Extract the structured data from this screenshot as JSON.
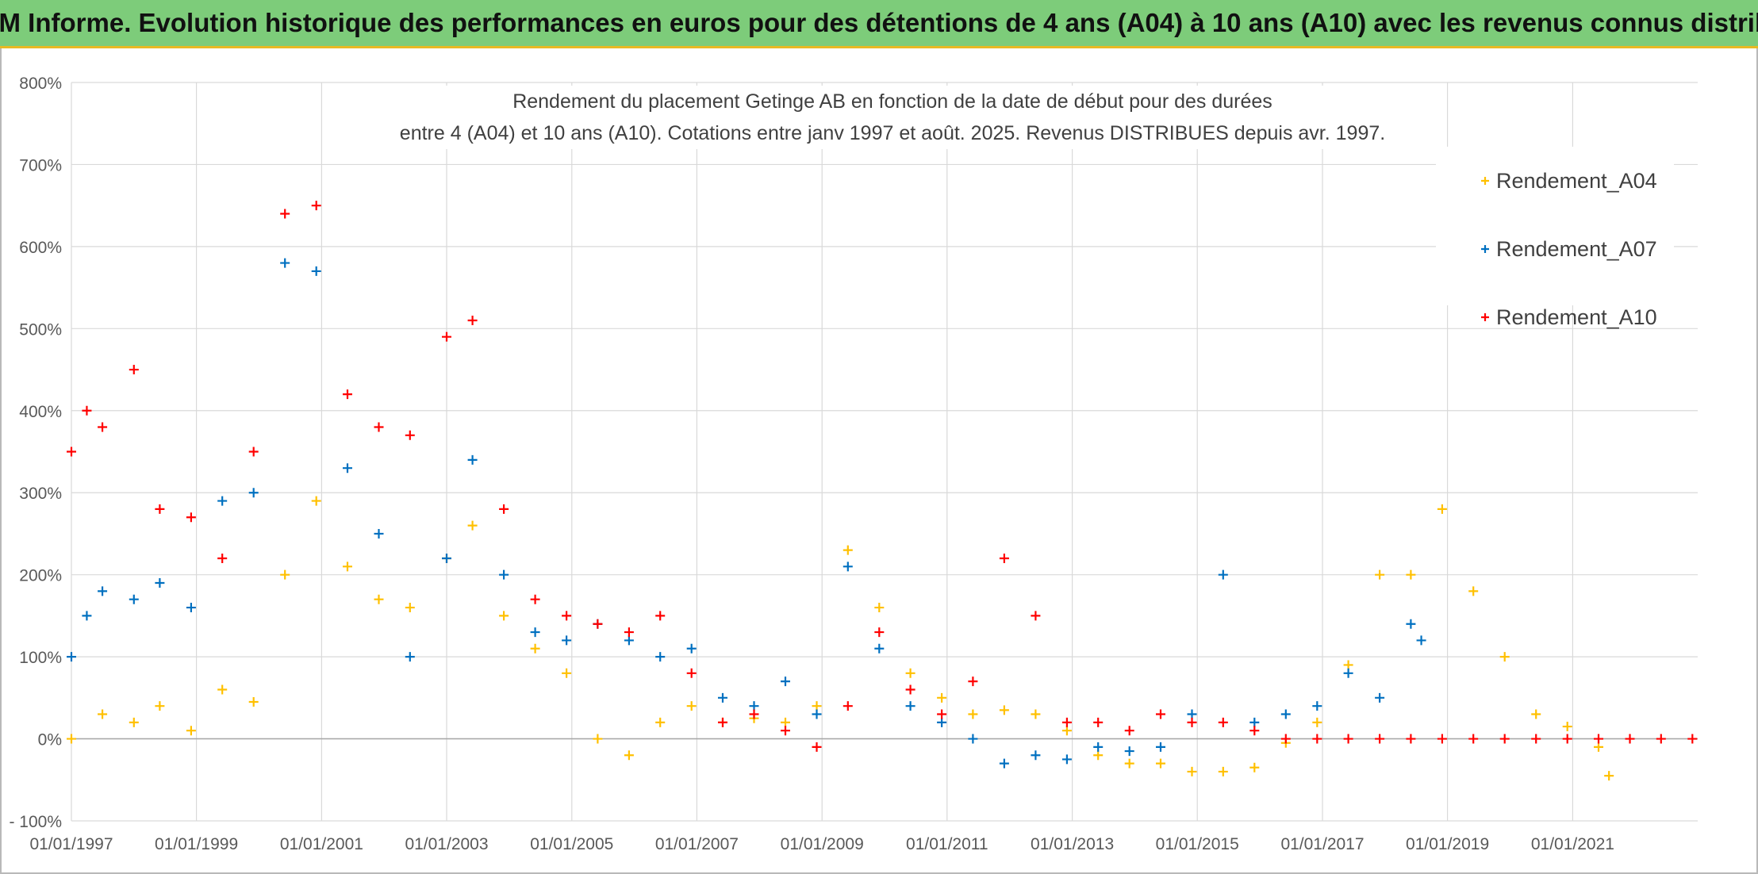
{
  "banner": {
    "title": "ADAM Informe. Evolution historique des performances en euros pour des détentions de 4 ans (A04) à 10 ans (A10) avec les revenus connus distribués"
  },
  "chart_data": {
    "type": "scatter",
    "title_line1": "Rendement du placement Getinge AB en fonction de la date de début pour des durées",
    "title_line2": "entre 4 (A04) et 10 ans (A10). Cotations entre janv 1997 et août. 2025. Revenus DISTRIBUES depuis avr. 1997.",
    "xlabel": "",
    "ylabel": "",
    "x_ticks": [
      "01/01/1997",
      "01/01/1999",
      "01/01/2001",
      "01/01/2003",
      "01/01/2005",
      "01/01/2007",
      "01/01/2009",
      "01/01/2011",
      "01/01/2013",
      "01/01/2015",
      "01/01/2017",
      "01/01/2019",
      "01/01/2021"
    ],
    "y_ticks": [
      "- 100%",
      "0%",
      "100%",
      "200%",
      "300%",
      "400%",
      "500%",
      "600%",
      "700%",
      "800%"
    ],
    "xlim": [
      "01/01/1997",
      "01/01/2023"
    ],
    "ylim": [
      -100,
      800
    ],
    "grid": true,
    "legend_position": "top-right",
    "marker": "+",
    "series": [
      {
        "name": "Rendement_A04",
        "color": "#ffc000",
        "x": [
          "01/01/1997",
          "01/07/1997",
          "01/01/1998",
          "01/06/1998",
          "01/12/1998",
          "01/06/1999",
          "01/12/1999",
          "01/06/2000",
          "01/12/2000",
          "01/06/2001",
          "01/12/2001",
          "01/06/2002",
          "01/01/2003",
          "01/06/2003",
          "01/12/2003",
          "01/06/2004",
          "01/12/2004",
          "01/06/2005",
          "01/12/2005",
          "01/06/2006",
          "01/12/2006",
          "01/06/2007",
          "01/12/2007",
          "01/06/2008",
          "01/12/2008",
          "01/06/2009",
          "01/12/2009",
          "01/06/2010",
          "01/12/2010",
          "01/06/2011",
          "01/12/2011",
          "01/06/2012",
          "01/12/2012",
          "01/06/2013",
          "01/12/2013",
          "01/06/2014",
          "01/12/2014",
          "01/06/2015",
          "01/12/2015",
          "01/06/2016",
          "01/12/2016",
          "01/06/2017",
          "01/12/2017",
          "01/06/2018",
          "01/12/2018",
          "01/06/2019",
          "01/12/2019",
          "01/06/2020",
          "01/12/2020",
          "01/06/2021",
          "01/08/2021"
        ],
        "y": [
          0,
          30,
          20,
          40,
          10,
          60,
          45,
          200,
          290,
          210,
          170,
          160,
          220,
          260,
          150,
          110,
          80,
          0,
          -20,
          20,
          40,
          20,
          25,
          20,
          40,
          230,
          160,
          80,
          50,
          30,
          35,
          30,
          10,
          -20,
          -30,
          -30,
          -40,
          -40,
          -35,
          -5,
          20,
          90,
          200,
          200,
          280,
          180,
          100,
          30,
          15,
          -10,
          -45
        ]
      },
      {
        "name": "Rendement_A07",
        "color": "#0070c0",
        "x": [
          "01/01/1997",
          "01/04/1997",
          "01/07/1997",
          "01/01/1998",
          "01/06/1998",
          "01/12/1998",
          "01/06/1999",
          "01/12/1999",
          "01/06/2000",
          "01/12/2000",
          "01/06/2001",
          "01/12/2001",
          "01/06/2002",
          "01/01/2003",
          "01/06/2003",
          "01/12/2003",
          "01/06/2004",
          "01/12/2004",
          "01/06/2005",
          "01/12/2005",
          "01/06/2006",
          "01/12/2006",
          "01/06/2007",
          "01/12/2007",
          "01/06/2008",
          "01/12/2008",
          "01/06/2009",
          "01/12/2009",
          "01/06/2010",
          "01/12/2010",
          "01/06/2011",
          "01/12/2011",
          "01/06/2012",
          "01/12/2012",
          "01/06/2013",
          "01/12/2013",
          "01/06/2014",
          "01/12/2014",
          "01/06/2015",
          "01/12/2015",
          "01/06/2016",
          "01/12/2016",
          "01/06/2017",
          "01/12/2017",
          "01/06/2018",
          "01/08/2018"
        ],
        "y": [
          100,
          150,
          180,
          170,
          190,
          160,
          290,
          300,
          580,
          570,
          330,
          250,
          100,
          220,
          340,
          200,
          130,
          120,
          140,
          120,
          100,
          110,
          50,
          40,
          70,
          30,
          210,
          110,
          40,
          20,
          0,
          -30,
          -20,
          -25,
          -10,
          -15,
          -10,
          30,
          200,
          20,
          30,
          40,
          80,
          50,
          140,
          120
        ]
      },
      {
        "name": "Rendement_A10",
        "color": "#ff0000",
        "x": [
          "01/01/1997",
          "01/04/1997",
          "01/07/1997",
          "01/01/1998",
          "01/06/1998",
          "01/12/1998",
          "01/06/1999",
          "01/12/1999",
          "01/06/2000",
          "01/12/2000",
          "01/06/2001",
          "01/12/2001",
          "01/06/2002",
          "01/01/2003",
          "01/06/2003",
          "01/12/2003",
          "01/06/2004",
          "01/12/2004",
          "01/06/2005",
          "01/12/2005",
          "01/06/2006",
          "01/12/2006",
          "01/06/2007",
          "01/12/2007",
          "01/06/2008",
          "01/12/2008",
          "01/06/2009",
          "01/12/2009",
          "01/06/2010",
          "01/12/2010",
          "01/06/2011",
          "01/12/2011",
          "01/06/2012",
          "01/12/2012",
          "01/06/2013",
          "01/12/2013",
          "01/06/2014",
          "01/12/2014",
          "01/06/2015",
          "01/12/2015",
          "01/06/2016",
          "01/12/2016",
          "01/06/2017",
          "01/12/2017",
          "01/06/2018",
          "01/12/2018",
          "01/06/2019",
          "01/12/2019",
          "01/06/2020",
          "01/12/2020",
          "01/06/2021",
          "01/12/2021",
          "01/06/2022",
          "01/12/2022"
        ],
        "y": [
          350,
          400,
          380,
          450,
          280,
          270,
          220,
          350,
          640,
          650,
          420,
          380,
          370,
          490,
          510,
          280,
          170,
          150,
          140,
          130,
          150,
          80,
          20,
          30,
          10,
          -10,
          40,
          130,
          60,
          30,
          70,
          220,
          150,
          20,
          20,
          10,
          30,
          20,
          20,
          10,
          0,
          0,
          0,
          0,
          0,
          0,
          0,
          0,
          0,
          0,
          0,
          0,
          0,
          0
        ]
      }
    ]
  }
}
